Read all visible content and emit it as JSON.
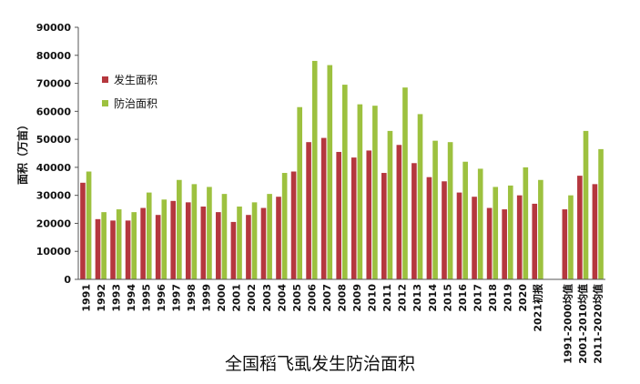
{
  "chart_data": {
    "type": "bar",
    "title": "全国稻飞虱发生防治面积",
    "ylabel": "面积（万亩）",
    "ylim": [
      0,
      90000
    ],
    "yticks": [
      0,
      10000,
      20000,
      30000,
      40000,
      50000,
      60000,
      70000,
      80000,
      90000
    ],
    "legend_position": "top-left",
    "categories": [
      "1991",
      "1992",
      "1993",
      "1994",
      "1995",
      "1996",
      "1997",
      "1998",
      "1999",
      "2000",
      "2001",
      "2002",
      "2003",
      "2004",
      "2005",
      "2006",
      "2007",
      "2008",
      "2009",
      "2010",
      "2011",
      "2012",
      "2013",
      "2014",
      "2015",
      "2016",
      "2017",
      "2018",
      "2019",
      "2020",
      "2021初报",
      "",
      "1991-2000均值",
      "2001-2010均值",
      "2011-2020均值"
    ],
    "series": [
      {
        "name": "发生面积",
        "color": "#b5373e",
        "values": [
          34500,
          21500,
          21000,
          21000,
          25500,
          23000,
          28000,
          27500,
          26000,
          24000,
          20500,
          23000,
          25500,
          29500,
          38500,
          49000,
          50500,
          45500,
          43500,
          46000,
          38000,
          48000,
          41500,
          36500,
          35000,
          31000,
          29500,
          25500,
          25000,
          30000,
          27000,
          null,
          25000,
          37000,
          34000
        ]
      },
      {
        "name": "防治面积",
        "color": "#9dc13f",
        "values": [
          38500,
          24000,
          25000,
          24000,
          31000,
          28500,
          35500,
          34000,
          33000,
          30500,
          26000,
          27500,
          30500,
          38000,
          61500,
          78000,
          76500,
          69500,
          62500,
          62000,
          53000,
          68500,
          59000,
          49500,
          49000,
          42000,
          39500,
          33000,
          33500,
          40000,
          35500,
          null,
          30000,
          53000,
          46500
        ]
      }
    ]
  }
}
